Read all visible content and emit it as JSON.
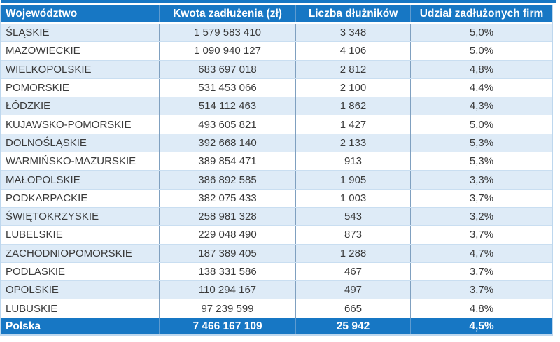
{
  "chart_data": {
    "type": "table",
    "columns": [
      "Województwo",
      "Kwota zadłużenia (zł)",
      "Liczba dłużników",
      "Udział zadłużonych firm"
    ],
    "rows": [
      {
        "region": "ŚLĄSKIE",
        "debt": "1 579 583 410",
        "debtors": "3 348",
        "share": "5,0%"
      },
      {
        "region": "MAZOWIECKIE",
        "debt": "1 090 940 127",
        "debtors": "4 106",
        "share": "5,0%"
      },
      {
        "region": "WIELKOPOLSKIE",
        "debt": "683 697 018",
        "debtors": "2 812",
        "share": "4,8%"
      },
      {
        "region": "POMORSKIE",
        "debt": "531 453 066",
        "debtors": "2 100",
        "share": "4,4%"
      },
      {
        "region": "ŁÓDZKIE",
        "debt": "514 112 463",
        "debtors": "1 862",
        "share": "4,3%"
      },
      {
        "region": "KUJAWSKO-POMORSKIE",
        "debt": "493 605 821",
        "debtors": "1 427",
        "share": "5,0%"
      },
      {
        "region": "DOLNOŚLĄSKIE",
        "debt": "392 668 140",
        "debtors": "2 133",
        "share": "5,3%"
      },
      {
        "region": "WARMIŃSKO-MAZURSKIE",
        "debt": "389 854 471",
        "debtors": "913",
        "share": "5,3%"
      },
      {
        "region": "MAŁOPOLSKIE",
        "debt": "386 892 585",
        "debtors": "1 905",
        "share": "3,3%"
      },
      {
        "region": "PODKARPACKIE",
        "debt": "382 075 433",
        "debtors": "1 003",
        "share": "3,7%"
      },
      {
        "region": "ŚWIĘTOKRZYSKIE",
        "debt": "258 981 328",
        "debtors": "543",
        "share": "3,2%"
      },
      {
        "region": "LUBELSKIE",
        "debt": "229 048 490",
        "debtors": "873",
        "share": "3,7%"
      },
      {
        "region": "ZACHODNIOPOMORSKIE",
        "debt": "187 389 405",
        "debtors": "1 288",
        "share": "4,7%"
      },
      {
        "region": "PODLASKIE",
        "debt": "138 331 586",
        "debtors": "467",
        "share": "3,7%"
      },
      {
        "region": "OPOLSKIE",
        "debt": "110 294 167",
        "debtors": "497",
        "share": "3,7%"
      },
      {
        "region": "LUBUSKIE",
        "debt": "97 239 599",
        "debtors": "665",
        "share": "4,8%"
      }
    ],
    "total": {
      "region": "Polska",
      "debt": "7 466 167 109",
      "debtors": "25 942",
      "share": "4,5%"
    }
  },
  "colors": {
    "header_fill": "#1777C4",
    "band_fill": "#DEEBF7",
    "row_border": "#C9DEF1",
    "column_border": "#7FA0C0",
    "outer_border": "#BDD7EE",
    "header_text": "#FFFFFF",
    "body_text": "#3A3A3A"
  }
}
